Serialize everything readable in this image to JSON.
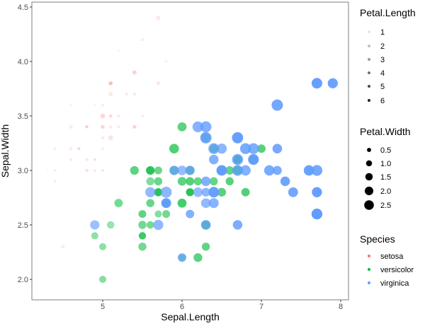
{
  "chart_data": {
    "type": "scatter",
    "title": "",
    "xlabel": "Sepal.Length",
    "ylabel": "Sepal.Width",
    "xlim": [
      4.107,
      8.098
    ],
    "ylim": [
      1.812,
      4.545
    ],
    "x_ticks": [
      5,
      6,
      7,
      8
    ],
    "x_tick_labels": [
      "5",
      "6",
      "7",
      "8"
    ],
    "y_ticks": [
      2.0,
      2.5,
      3.0,
      3.5,
      4.0,
      4.5
    ],
    "y_tick_labels": [
      "2.0",
      "2.5",
      "3.0",
      "3.5",
      "4.0",
      "4.5"
    ],
    "grid": false,
    "encoding": {
      "x": "Sepal.Length",
      "y": "Sepal.Width",
      "size": "Petal.Width",
      "alpha": "Petal.Length",
      "color": "Species"
    },
    "point_columns": [
      "Sepal.Length",
      "Sepal.Width",
      "Petal.Length",
      "Petal.Width"
    ],
    "series": [
      {
        "name": "setosa",
        "color": "#F8766D",
        "points": [
          [
            5.1,
            3.5,
            1.4,
            0.2
          ],
          [
            4.9,
            3.0,
            1.4,
            0.2
          ],
          [
            4.7,
            3.2,
            1.3,
            0.2
          ],
          [
            4.6,
            3.1,
            1.5,
            0.2
          ],
          [
            5.0,
            3.6,
            1.4,
            0.2
          ],
          [
            5.4,
            3.9,
            1.7,
            0.4
          ],
          [
            4.6,
            3.4,
            1.4,
            0.3
          ],
          [
            5.0,
            3.4,
            1.5,
            0.2
          ],
          [
            4.4,
            2.9,
            1.4,
            0.2
          ],
          [
            4.9,
            3.1,
            1.5,
            0.1
          ],
          [
            5.4,
            3.7,
            1.5,
            0.2
          ],
          [
            4.8,
            3.4,
            1.6,
            0.2
          ],
          [
            4.8,
            3.0,
            1.4,
            0.1
          ],
          [
            4.3,
            3.0,
            1.1,
            0.1
          ],
          [
            5.8,
            4.0,
            1.2,
            0.2
          ],
          [
            5.7,
            4.4,
            1.5,
            0.4
          ],
          [
            5.4,
            3.9,
            1.3,
            0.4
          ],
          [
            5.1,
            3.5,
            1.4,
            0.3
          ],
          [
            5.7,
            3.8,
            1.7,
            0.3
          ],
          [
            5.1,
            3.8,
            1.5,
            0.3
          ],
          [
            5.4,
            3.4,
            1.7,
            0.2
          ],
          [
            5.1,
            3.7,
            1.5,
            0.4
          ],
          [
            4.6,
            3.6,
            1.0,
            0.2
          ],
          [
            5.1,
            3.3,
            1.7,
            0.5
          ],
          [
            4.8,
            3.4,
            1.9,
            0.2
          ],
          [
            5.0,
            3.0,
            1.6,
            0.2
          ],
          [
            5.0,
            3.4,
            1.6,
            0.4
          ],
          [
            5.2,
            3.5,
            1.5,
            0.2
          ],
          [
            5.2,
            3.4,
            1.4,
            0.2
          ],
          [
            4.7,
            3.2,
            1.6,
            0.2
          ],
          [
            4.8,
            3.1,
            1.6,
            0.2
          ],
          [
            5.4,
            3.4,
            1.5,
            0.4
          ],
          [
            5.2,
            4.1,
            1.5,
            0.1
          ],
          [
            5.5,
            4.2,
            1.4,
            0.2
          ],
          [
            4.9,
            3.1,
            1.5,
            0.2
          ],
          [
            5.0,
            3.2,
            1.2,
            0.2
          ],
          [
            5.5,
            3.5,
            1.3,
            0.2
          ],
          [
            4.9,
            3.6,
            1.4,
            0.1
          ],
          [
            4.4,
            3.0,
            1.3,
            0.2
          ],
          [
            5.1,
            3.4,
            1.5,
            0.2
          ],
          [
            5.0,
            3.5,
            1.3,
            0.3
          ],
          [
            4.5,
            2.3,
            1.3,
            0.3
          ],
          [
            4.4,
            3.2,
            1.3,
            0.2
          ],
          [
            5.0,
            3.5,
            1.6,
            0.6
          ],
          [
            5.1,
            3.8,
            1.9,
            0.4
          ],
          [
            4.8,
            3.0,
            1.4,
            0.3
          ],
          [
            5.1,
            3.8,
            1.6,
            0.2
          ],
          [
            4.6,
            3.2,
            1.4,
            0.2
          ],
          [
            5.3,
            3.7,
            1.5,
            0.2
          ],
          [
            5.0,
            3.3,
            1.4,
            0.2
          ]
        ]
      },
      {
        "name": "versicolor",
        "color": "#00BA38",
        "points": [
          [
            7.0,
            3.2,
            4.7,
            1.4
          ],
          [
            6.4,
            3.2,
            4.5,
            1.5
          ],
          [
            6.9,
            3.1,
            4.9,
            1.5
          ],
          [
            5.5,
            2.3,
            4.0,
            1.3
          ],
          [
            6.5,
            2.8,
            4.6,
            1.5
          ],
          [
            5.7,
            2.8,
            4.5,
            1.3
          ],
          [
            6.3,
            3.3,
            4.7,
            1.6
          ],
          [
            4.9,
            2.4,
            3.3,
            1.0
          ],
          [
            6.6,
            2.9,
            4.6,
            1.3
          ],
          [
            5.2,
            2.7,
            3.9,
            1.4
          ],
          [
            5.0,
            2.0,
            3.5,
            1.0
          ],
          [
            5.9,
            3.0,
            4.2,
            1.5
          ],
          [
            6.0,
            2.2,
            4.0,
            1.0
          ],
          [
            6.1,
            2.9,
            4.7,
            1.4
          ],
          [
            5.6,
            2.9,
            3.6,
            1.3
          ],
          [
            6.7,
            3.1,
            4.4,
            1.4
          ],
          [
            5.6,
            3.0,
            4.5,
            1.5
          ],
          [
            5.8,
            2.7,
            4.1,
            1.0
          ],
          [
            6.2,
            2.2,
            4.5,
            1.5
          ],
          [
            5.6,
            2.5,
            3.9,
            1.1
          ],
          [
            5.9,
            3.2,
            4.8,
            1.8
          ],
          [
            6.1,
            2.8,
            4.0,
            1.3
          ],
          [
            6.3,
            2.5,
            4.9,
            1.5
          ],
          [
            6.1,
            2.8,
            4.7,
            1.2
          ],
          [
            6.4,
            2.9,
            4.3,
            1.3
          ],
          [
            6.6,
            3.0,
            4.4,
            1.4
          ],
          [
            6.8,
            2.8,
            4.8,
            1.4
          ],
          [
            6.7,
            3.0,
            5.0,
            1.7
          ],
          [
            6.0,
            2.9,
            4.5,
            1.5
          ],
          [
            5.7,
            2.6,
            3.5,
            1.0
          ],
          [
            5.5,
            2.4,
            3.8,
            1.1
          ],
          [
            5.5,
            2.4,
            3.7,
            1.0
          ],
          [
            5.8,
            2.7,
            3.9,
            1.2
          ],
          [
            6.0,
            2.7,
            5.1,
            1.6
          ],
          [
            5.4,
            3.0,
            4.5,
            1.5
          ],
          [
            6.0,
            3.4,
            4.5,
            1.6
          ],
          [
            6.7,
            3.1,
            4.7,
            1.5
          ],
          [
            6.3,
            2.3,
            4.4,
            1.3
          ],
          [
            5.6,
            3.0,
            4.1,
            1.3
          ],
          [
            5.5,
            2.5,
            4.0,
            1.3
          ],
          [
            5.5,
            2.6,
            4.4,
            1.2
          ],
          [
            6.1,
            3.0,
            4.6,
            1.4
          ],
          [
            5.8,
            2.6,
            4.0,
            1.2
          ],
          [
            5.0,
            2.3,
            3.3,
            1.0
          ],
          [
            5.6,
            2.7,
            4.2,
            1.3
          ],
          [
            5.7,
            3.0,
            4.2,
            1.2
          ],
          [
            5.7,
            2.9,
            4.2,
            1.3
          ],
          [
            6.2,
            2.9,
            4.3,
            1.3
          ],
          [
            5.1,
            2.5,
            3.0,
            1.1
          ],
          [
            5.7,
            2.8,
            4.1,
            1.3
          ]
        ]
      },
      {
        "name": "virginica",
        "color": "#619CFF",
        "points": [
          [
            6.3,
            3.3,
            6.0,
            2.5
          ],
          [
            5.8,
            2.7,
            5.1,
            1.9
          ],
          [
            7.1,
            3.0,
            5.9,
            2.1
          ],
          [
            6.3,
            2.9,
            5.6,
            1.8
          ],
          [
            6.5,
            3.0,
            5.8,
            2.2
          ],
          [
            7.6,
            3.0,
            6.6,
            2.1
          ],
          [
            4.9,
            2.5,
            4.5,
            1.7
          ],
          [
            7.3,
            2.9,
            6.3,
            1.8
          ],
          [
            6.7,
            2.5,
            5.8,
            1.8
          ],
          [
            7.2,
            3.6,
            6.1,
            2.5
          ],
          [
            6.5,
            3.2,
            5.1,
            2.0
          ],
          [
            6.4,
            2.7,
            5.3,
            1.9
          ],
          [
            6.8,
            3.0,
            5.5,
            2.1
          ],
          [
            5.7,
            2.5,
            5.0,
            2.0
          ],
          [
            5.8,
            2.8,
            5.1,
            2.4
          ],
          [
            6.4,
            3.2,
            5.3,
            2.3
          ],
          [
            6.5,
            3.0,
            5.5,
            1.8
          ],
          [
            7.7,
            3.8,
            6.7,
            2.2
          ],
          [
            7.7,
            2.6,
            6.9,
            2.3
          ],
          [
            6.0,
            2.2,
            5.0,
            1.5
          ],
          [
            6.9,
            3.2,
            5.7,
            2.3
          ],
          [
            5.6,
            2.8,
            4.9,
            2.0
          ],
          [
            7.7,
            2.8,
            6.7,
            2.0
          ],
          [
            6.3,
            2.7,
            4.9,
            1.8
          ],
          [
            6.7,
            3.3,
            5.7,
            2.1
          ],
          [
            7.2,
            3.2,
            6.0,
            1.8
          ],
          [
            6.2,
            2.8,
            4.8,
            1.8
          ],
          [
            6.1,
            3.0,
            4.9,
            1.8
          ],
          [
            6.4,
            2.8,
            5.6,
            2.1
          ],
          [
            7.2,
            3.0,
            5.8,
            1.6
          ],
          [
            7.4,
            2.8,
            6.1,
            1.9
          ],
          [
            7.9,
            3.8,
            6.4,
            2.0
          ],
          [
            6.4,
            2.8,
            5.6,
            2.2
          ],
          [
            6.3,
            2.8,
            5.1,
            1.5
          ],
          [
            6.1,
            2.6,
            5.6,
            1.4
          ],
          [
            7.7,
            3.0,
            6.1,
            2.3
          ],
          [
            6.3,
            3.4,
            5.6,
            2.4
          ],
          [
            6.4,
            3.1,
            5.5,
            1.8
          ],
          [
            6.0,
            3.0,
            4.8,
            1.8
          ],
          [
            6.9,
            3.1,
            5.4,
            2.1
          ],
          [
            6.7,
            3.1,
            5.6,
            2.4
          ],
          [
            6.9,
            3.1,
            5.1,
            2.3
          ],
          [
            5.8,
            2.7,
            5.1,
            1.9
          ],
          [
            6.8,
            3.2,
            5.9,
            2.3
          ],
          [
            6.7,
            3.3,
            5.7,
            2.5
          ],
          [
            6.7,
            3.0,
            5.2,
            2.3
          ],
          [
            6.3,
            2.5,
            5.0,
            1.9
          ],
          [
            6.5,
            3.0,
            5.2,
            2.0
          ],
          [
            6.2,
            3.4,
            5.4,
            2.3
          ],
          [
            5.9,
            3.0,
            5.1,
            1.8
          ]
        ]
      }
    ],
    "legends": [
      {
        "title": "Petal.Length",
        "type": "alpha",
        "labels": [
          "1",
          "2",
          "3",
          "4",
          "5",
          "6"
        ],
        "values": [
          1,
          2,
          3,
          4,
          5,
          6
        ]
      },
      {
        "title": "Petal.Width",
        "type": "size",
        "labels": [
          "0.5",
          "1.0",
          "1.5",
          "2.0",
          "2.5"
        ],
        "values": [
          0.5,
          1.0,
          1.5,
          2.0,
          2.5
        ]
      },
      {
        "title": "Species",
        "type": "color",
        "labels": [
          "setosa",
          "versicolor",
          "virginica"
        ]
      }
    ],
    "legend_position": "right"
  }
}
